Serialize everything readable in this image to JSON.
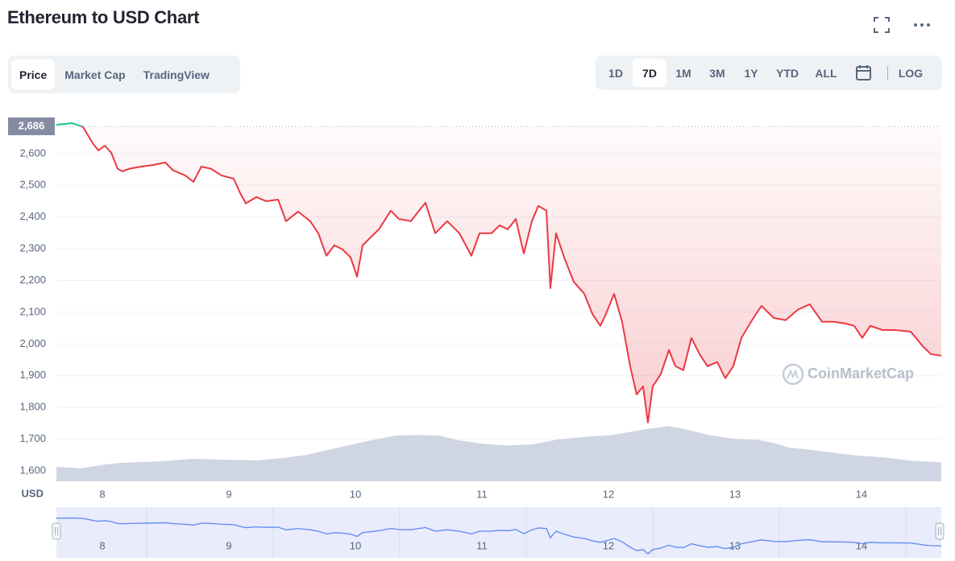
{
  "chart_data": {
    "type": "line",
    "title": "Ethereum to USD Chart",
    "color": "#ea3943",
    "up_color": "#16c784",
    "x": [
      7.637,
      7.764,
      7.847,
      7.924,
      7.968,
      8.019,
      8.07,
      8.121,
      8.159,
      8.21,
      8.306,
      8.401,
      8.497,
      8.561,
      8.656,
      8.72,
      8.783,
      8.86,
      8.943,
      9.038,
      9.089,
      9.134,
      9.217,
      9.293,
      9.389,
      9.452,
      9.548,
      9.643,
      9.707,
      9.771,
      9.834,
      9.898,
      9.962,
      10.013,
      10.057,
      10.121,
      10.185,
      10.28,
      10.344,
      10.439,
      10.503,
      10.554,
      10.631,
      10.726,
      10.822,
      10.917,
      10.981,
      11.076,
      11.14,
      11.204,
      11.268,
      11.331,
      11.395,
      11.446,
      11.51,
      11.541,
      11.586,
      11.65,
      11.726,
      11.809,
      11.873,
      11.936,
      11.981,
      12.045,
      12.108,
      12.172,
      12.223,
      12.274,
      12.312,
      12.35,
      12.414,
      12.478,
      12.529,
      12.592,
      12.656,
      12.72,
      12.783,
      12.86,
      12.924,
      12.987,
      13.051,
      13.146,
      13.21,
      13.306,
      13.401,
      13.497,
      13.592,
      13.688,
      13.783,
      13.879,
      13.943,
      14.006,
      14.07,
      14.166,
      14.261,
      14.389,
      14.484,
      14.548,
      14.631
    ],
    "values": [
      2691,
      2696,
      2684,
      2633,
      2610,
      2625,
      2603,
      2552,
      2544,
      2552,
      2559,
      2564,
      2572,
      2547,
      2531,
      2511,
      2559,
      2552,
      2531,
      2521,
      2476,
      2443,
      2463,
      2450,
      2455,
      2387,
      2417,
      2387,
      2349,
      2278,
      2311,
      2298,
      2273,
      2212,
      2311,
      2336,
      2361,
      2420,
      2394,
      2387,
      2420,
      2445,
      2349,
      2387,
      2349,
      2278,
      2349,
      2349,
      2374,
      2361,
      2394,
      2285,
      2387,
      2435,
      2420,
      2176,
      2349,
      2273,
      2196,
      2158,
      2095,
      2057,
      2095,
      2158,
      2070,
      1930,
      1841,
      1866,
      1752,
      1866,
      1905,
      1981,
      1930,
      1917,
      2019,
      1968,
      1930,
      1943,
      1892,
      1930,
      2019,
      2082,
      2120,
      2082,
      2075,
      2108,
      2125,
      2070,
      2070,
      2064,
      2057,
      2019,
      2057,
      2044,
      2044,
      2039,
      1993,
      1968,
      1963
    ],
    "volume": {
      "color": "#cfd5e2",
      "x": [
        7.637,
        7.828,
        8.019,
        8.146,
        8.465,
        8.72,
        8.975,
        9.229,
        9.42,
        9.611,
        9.803,
        9.994,
        10.121,
        10.312,
        10.503,
        10.662,
        10.822,
        11.013,
        11.204,
        11.395,
        11.586,
        11.777,
        12.032,
        12.287,
        12.478,
        12.605,
        12.796,
        12.987,
        13.178,
        13.306,
        13.433,
        13.561,
        13.815,
        14.006,
        14.197,
        14.389,
        14.631
      ],
      "values": [
        1613,
        1608,
        1620,
        1625,
        1630,
        1638,
        1635,
        1633,
        1640,
        1650,
        1668,
        1685,
        1696,
        1711,
        1713,
        1711,
        1696,
        1685,
        1680,
        1683,
        1698,
        1706,
        1713,
        1731,
        1741,
        1731,
        1713,
        1701,
        1698,
        1688,
        1673,
        1668,
        1655,
        1647,
        1642,
        1632,
        1627
      ]
    },
    "reference": {
      "value": 2686,
      "label": "2,686"
    },
    "xlim": [
      7.637,
      14.631
    ],
    "xticks": [
      8,
      9,
      10,
      11,
      12,
      13,
      14
    ],
    "ylim": [
      1567,
      2729
    ],
    "yticks": [
      {
        "value": 1600,
        "label": "1,600"
      },
      {
        "value": 1700,
        "label": "1,700"
      },
      {
        "value": 1800,
        "label": "1,800"
      },
      {
        "value": 1900,
        "label": "1,900"
      },
      {
        "value": 2000,
        "label": "2,000"
      },
      {
        "value": 2100,
        "label": "2,100"
      },
      {
        "value": 2200,
        "label": "2,200"
      },
      {
        "value": 2300,
        "label": "2,300"
      },
      {
        "value": 2400,
        "label": "2,400"
      },
      {
        "value": 2500,
        "label": "2,500"
      },
      {
        "value": 2600,
        "label": "2,600"
      }
    ],
    "y_unit": "USD",
    "grid": true,
    "watermark": "CoinMarketCap"
  },
  "controls": {
    "tabs": [
      "Price",
      "Market Cap",
      "TradingView"
    ],
    "active_tab": 0,
    "ranges": [
      "1D",
      "7D",
      "1M",
      "3M",
      "1Y",
      "YTD",
      "ALL"
    ],
    "active_range": 1,
    "log": "LOG"
  }
}
